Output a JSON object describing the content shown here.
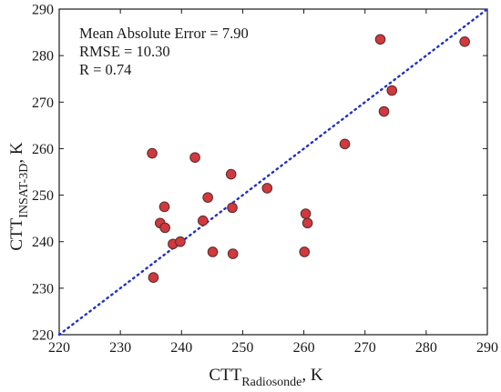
{
  "chart_data": {
    "type": "scatter",
    "xlabel": {
      "main": "CTT",
      "subscript": "Radiosonde",
      "suffix": ", K"
    },
    "ylabel": {
      "main": "CTT",
      "subscript": "INSAT-3D",
      "suffix": ", K"
    },
    "xlim": [
      220,
      290
    ],
    "ylim": [
      220,
      290
    ],
    "xticks": [
      "220",
      "230",
      "240",
      "250",
      "260",
      "270",
      "280",
      "290"
    ],
    "yticks": [
      "220",
      "230",
      "240",
      "250",
      "260",
      "270",
      "280",
      "290"
    ],
    "grid": false,
    "stats_lines": [
      "Mean Absolute Error = 7.90",
      "RMSE = 10.30",
      "R = 0.74"
    ],
    "reference_line": {
      "style": "dotted",
      "from": [
        220,
        220
      ],
      "to": [
        290,
        290
      ],
      "color": "#1f2fc8"
    },
    "marker_fill": "#d0393f",
    "marker_edge": "#5a2a2a",
    "points": [
      {
        "x": 235.2,
        "y": 259.0
      },
      {
        "x": 235.4,
        "y": 232.3
      },
      {
        "x": 236.5,
        "y": 244.0
      },
      {
        "x": 237.2,
        "y": 247.5
      },
      {
        "x": 237.3,
        "y": 243.0
      },
      {
        "x": 238.6,
        "y": 239.5
      },
      {
        "x": 239.8,
        "y": 240.0
      },
      {
        "x": 242.2,
        "y": 258.1
      },
      {
        "x": 243.5,
        "y": 244.5
      },
      {
        "x": 244.3,
        "y": 249.5
      },
      {
        "x": 245.1,
        "y": 237.8
      },
      {
        "x": 248.1,
        "y": 254.5
      },
      {
        "x": 248.3,
        "y": 247.3
      },
      {
        "x": 248.4,
        "y": 237.4
      },
      {
        "x": 254.0,
        "y": 251.5
      },
      {
        "x": 260.1,
        "y": 237.8
      },
      {
        "x": 260.3,
        "y": 246.0
      },
      {
        "x": 260.6,
        "y": 244.0
      },
      {
        "x": 266.7,
        "y": 261.0
      },
      {
        "x": 272.5,
        "y": 283.5
      },
      {
        "x": 273.1,
        "y": 268.0
      },
      {
        "x": 274.4,
        "y": 272.5
      },
      {
        "x": 286.3,
        "y": 283.0
      }
    ]
  }
}
